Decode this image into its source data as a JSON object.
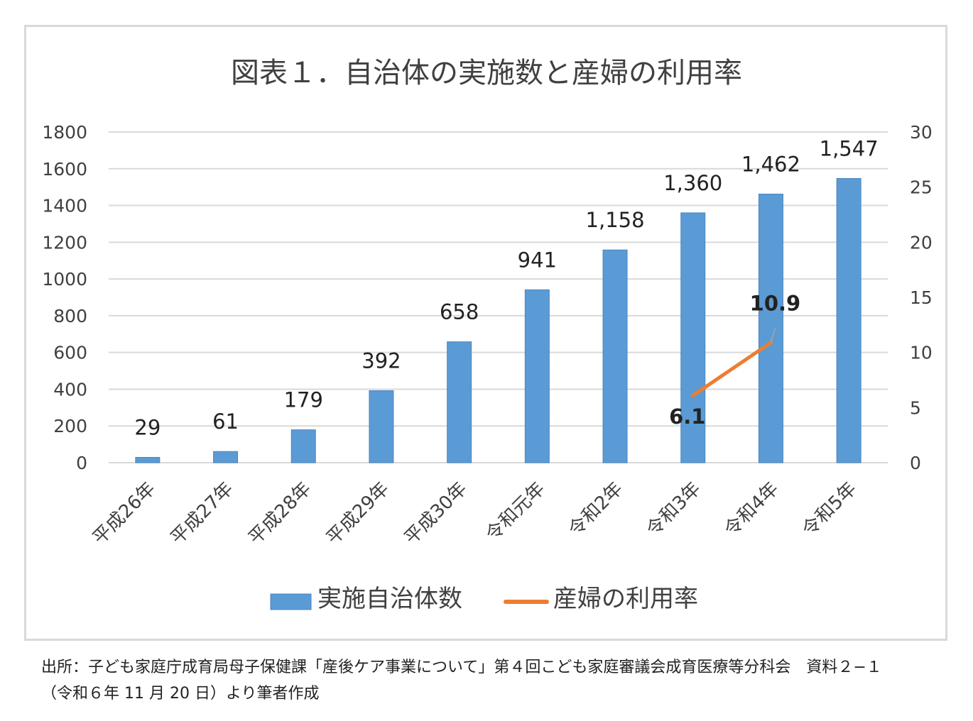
{
  "chart_data": {
    "type": "bar",
    "title": "図表１．自治体の実施数と産婦の利用率",
    "categories": [
      "平成26年",
      "平成27年",
      "平成28年",
      "平成29年",
      "平成30年",
      "令和元年",
      "令和2年",
      "令和3年",
      "令和4年",
      "令和5年"
    ],
    "series": [
      {
        "name": "実施自治体数",
        "type": "bar",
        "axis": "left",
        "color": "#5b9bd5",
        "values": [
          29,
          61,
          179,
          392,
          658,
          941,
          1158,
          1360,
          1462,
          1547
        ],
        "labels": [
          "29",
          "61",
          "179",
          "392",
          "658",
          "941",
          "1,158",
          "1,360",
          "1,462",
          "1,547"
        ]
      },
      {
        "name": "産婦の利用率",
        "type": "line",
        "axis": "right",
        "color": "#ed7d31",
        "values": [
          null,
          null,
          null,
          null,
          null,
          null,
          null,
          6.1,
          10.9,
          null
        ],
        "labels": [
          null,
          null,
          null,
          null,
          null,
          null,
          null,
          "6.1",
          "10.9",
          null
        ]
      }
    ],
    "y_left": {
      "range": [
        0,
        1800
      ],
      "ticks": [
        "0",
        "200",
        "400",
        "600",
        "800",
        "1000",
        "1200",
        "1400",
        "1600",
        "1800"
      ]
    },
    "y_right": {
      "range": [
        0,
        30
      ],
      "ticks": [
        "0",
        "5",
        "10",
        "15",
        "20",
        "25",
        "30"
      ]
    },
    "grid": true,
    "legend": "bottom"
  },
  "source": {
    "line1": "出所：子ども家庭庁成育局母子保健課「産後ケア事業について」第４回こども家庭審議会成育医療等分科会　資料２−１",
    "line2": "（令和６年 11 月 20 日）より筆者作成"
  }
}
